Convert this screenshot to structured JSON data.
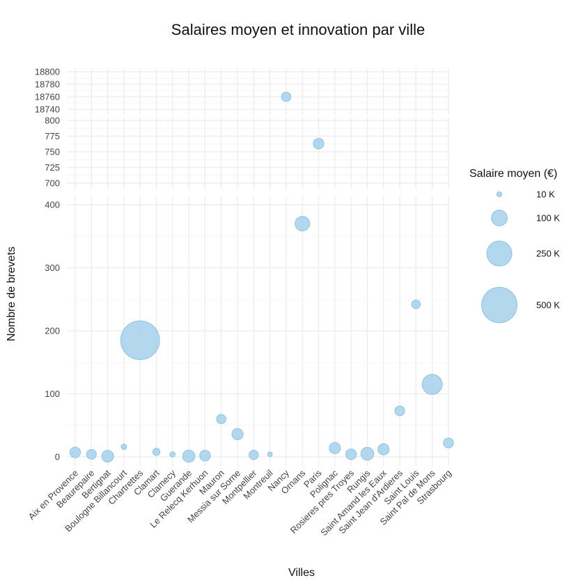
{
  "chart_data": {
    "type": "scatter",
    "title": "Salaires moyen et innovation par ville",
    "xlabel": "Villes",
    "ylabel": "Nombre de brevets",
    "point_color": "#a6d1ea",
    "point_stroke": "#8cc3e3",
    "categories": [
      "Aix en Provence",
      "Beaurepaire",
      "Bertignat",
      "Boulogne Billancourt",
      "Chartrettes",
      "Clamart",
      "Clamecy",
      "Guerande",
      "Le Relecq Kerhuon",
      "Mauron",
      "Messia sur Sorne",
      "Montpellier",
      "Montreuil",
      "Nancy",
      "Ornans",
      "Paris",
      "Polignac",
      "Rosieres pres Troyes",
      "Rungis",
      "Saint Amand les Eaux",
      "Saint Jean d'Ardieres",
      "Saint Louis",
      "Saint Pal de Mons",
      "Strasbourg"
    ],
    "points": [
      {
        "city": "Aix en Provence",
        "brevets": 7,
        "salaire": 45000
      },
      {
        "city": "Beaurepaire",
        "brevets": 4,
        "salaire": 38000
      },
      {
        "city": "Bertignat",
        "brevets": 1,
        "salaire": 55000
      },
      {
        "city": "Boulogne Billancourt",
        "brevets": 16,
        "salaire": 12000
      },
      {
        "city": "Chartrettes",
        "brevets": 185,
        "salaire": 600000
      },
      {
        "city": "Clamart",
        "brevets": 8,
        "salaire": 20000
      },
      {
        "city": "Clamecy",
        "brevets": 4,
        "salaire": 11000
      },
      {
        "city": "Guerande",
        "brevets": 1,
        "salaire": 60000
      },
      {
        "city": "Le Relecq Kerhuon",
        "brevets": 2,
        "salaire": 45000
      },
      {
        "city": "Mauron",
        "brevets": 60,
        "salaire": 35000
      },
      {
        "city": "Messia sur Sorne",
        "brevets": 36,
        "salaire": 50000
      },
      {
        "city": "Montpellier",
        "brevets": 3,
        "salaire": 35000
      },
      {
        "city": "Montreuil",
        "brevets": 4,
        "salaire": 9000
      },
      {
        "city": "Nancy",
        "brevets": 18760,
        "salaire": 35000
      },
      {
        "city": "Ornans",
        "brevets": 370,
        "salaire": 85000
      },
      {
        "city": "Paris",
        "brevets": 763,
        "salaire": 45000
      },
      {
        "city": "Polignac",
        "brevets": 14,
        "salaire": 50000
      },
      {
        "city": "Rosieres pres Troyes",
        "brevets": 4,
        "salaire": 45000
      },
      {
        "city": "Rungis",
        "brevets": 5,
        "salaire": 65000
      },
      {
        "city": "Saint Amand les Eaux",
        "brevets": 12,
        "salaire": 50000
      },
      {
        "city": "Saint Jean d'Ardieres",
        "brevets": 73,
        "salaire": 38000
      },
      {
        "city": "Saint Louis",
        "brevets": 242,
        "salaire": 30000
      },
      {
        "city": "Saint Pal de Mons",
        "brevets": 115,
        "salaire": 160000
      },
      {
        "city": "Strasbourg",
        "brevets": 22,
        "salaire": 40000
      }
    ],
    "panels": [
      {
        "name": "top",
        "ylim": [
          18740,
          18800
        ],
        "ticks": [
          18740,
          18760,
          18780,
          18800
        ],
        "tick_labels": [
          "18740",
          "18760",
          "18780",
          "18800"
        ]
      },
      {
        "name": "middle",
        "ylim": [
          700,
          800
        ],
        "ticks": [
          700,
          725,
          750,
          775,
          800
        ],
        "tick_labels": [
          "700",
          "725",
          "750",
          "775",
          "800"
        ]
      },
      {
        "name": "bottom",
        "ylim": [
          0,
          400
        ],
        "ticks": [
          0,
          100,
          200,
          300,
          400
        ],
        "tick_labels": [
          "0",
          "100",
          "200",
          "300",
          "400"
        ]
      }
    ],
    "legend": {
      "title": "Salaire moyen (€)",
      "placement": "right",
      "entries": [
        {
          "label": "10 K",
          "value": 10000
        },
        {
          "label": "100 K",
          "value": 100000
        },
        {
          "label": "250 K",
          "value": 250000
        },
        {
          "label": "500 K",
          "value": 500000
        }
      ]
    }
  }
}
